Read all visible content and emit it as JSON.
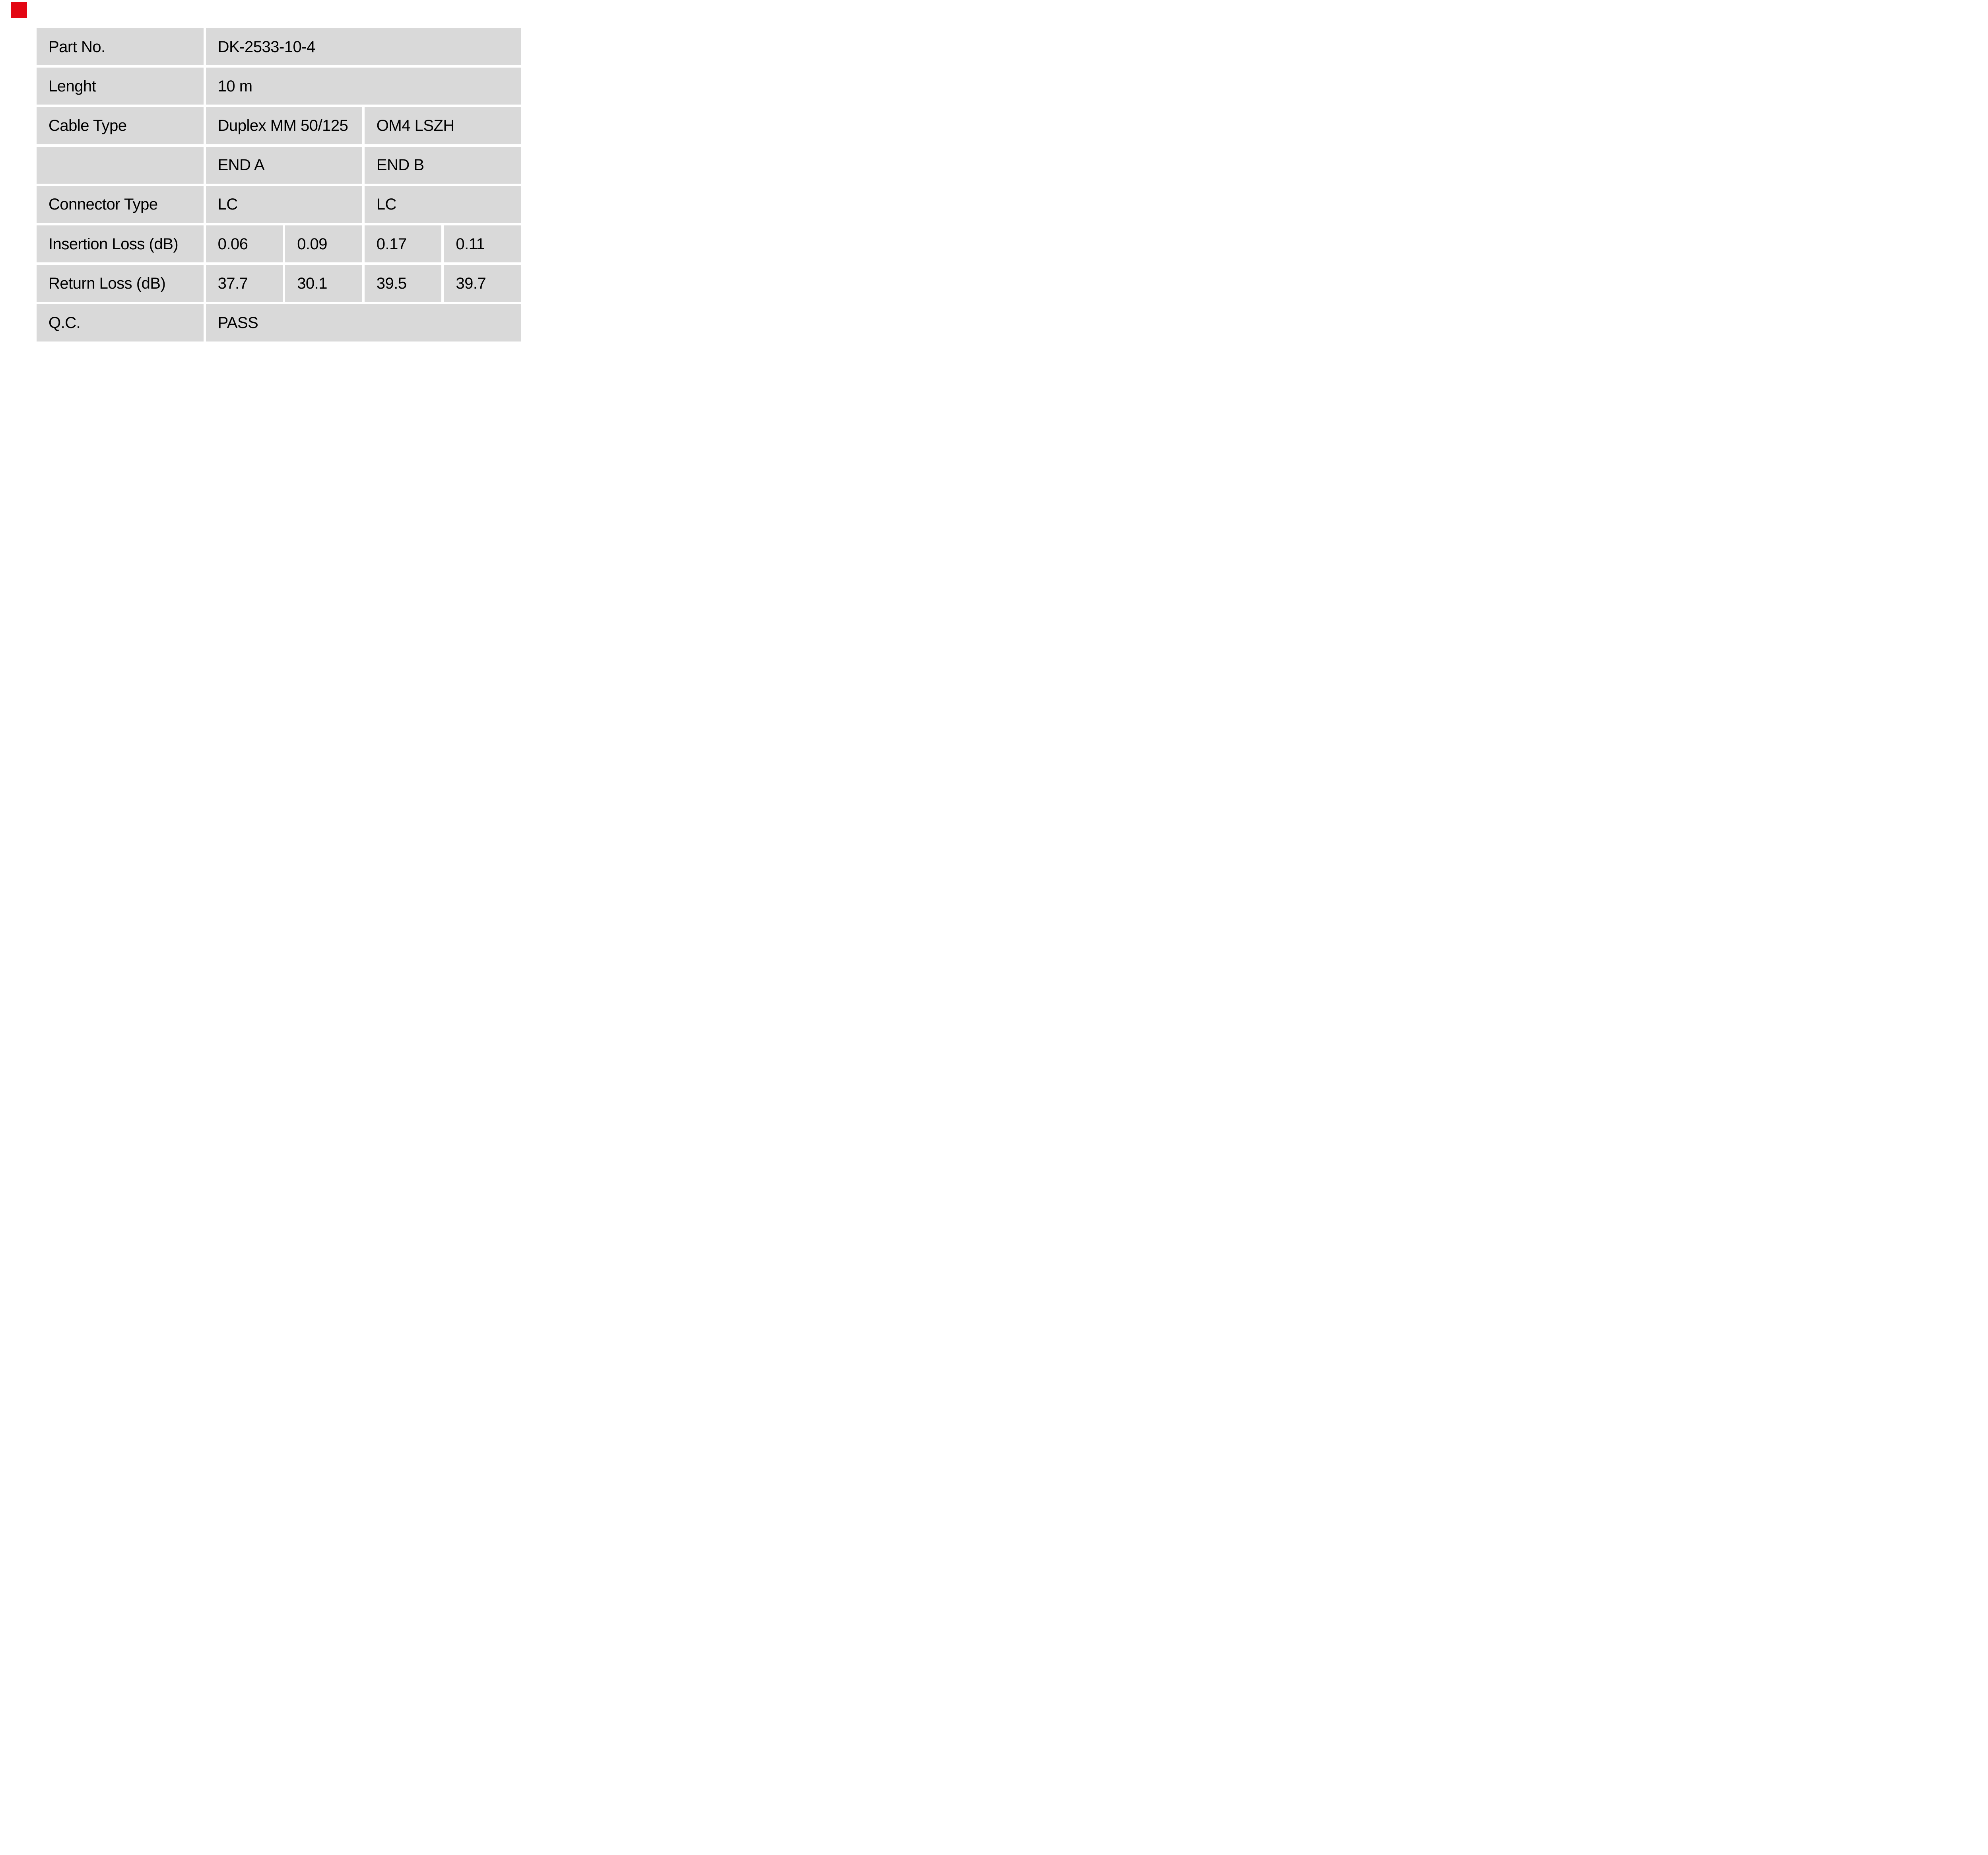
{
  "page": {
    "background_color": "#ffffff"
  },
  "brand": {
    "red_mark_color": "#e30613"
  },
  "table": {
    "cell_background": "#d9d9d9",
    "text_color": "#000000",
    "rows": [
      {
        "label": "Part No.",
        "values": [
          {
            "text": "DK-2533-10-4"
          }
        ]
      },
      {
        "label": "Lenght",
        "values": [
          {
            "text": "10 m"
          }
        ]
      },
      {
        "label": "Cable Type",
        "values": [
          {
            "text": "Duplex MM 50/125"
          },
          {
            "text": "OM4 LSZH"
          }
        ]
      },
      {
        "label": "",
        "values": [
          {
            "text": "END A"
          },
          {
            "text": "END B"
          }
        ]
      },
      {
        "label": "Connector Type",
        "values": [
          {
            "text": "LC"
          },
          {
            "text": "LC"
          }
        ]
      },
      {
        "label": "Insertion Loss (dB)",
        "values": [
          {
            "text": "0.06"
          },
          {
            "text": "0.09"
          },
          {
            "text": "0.17"
          },
          {
            "text": "0.11"
          }
        ]
      },
      {
        "label": "Return Loss (dB)",
        "values": [
          {
            "text": "37.7"
          },
          {
            "text": "30.1"
          },
          {
            "text": "39.5"
          },
          {
            "text": "39.7"
          }
        ]
      },
      {
        "label": "Q.C.",
        "values": [
          {
            "text": "PASS"
          }
        ]
      }
    ]
  }
}
